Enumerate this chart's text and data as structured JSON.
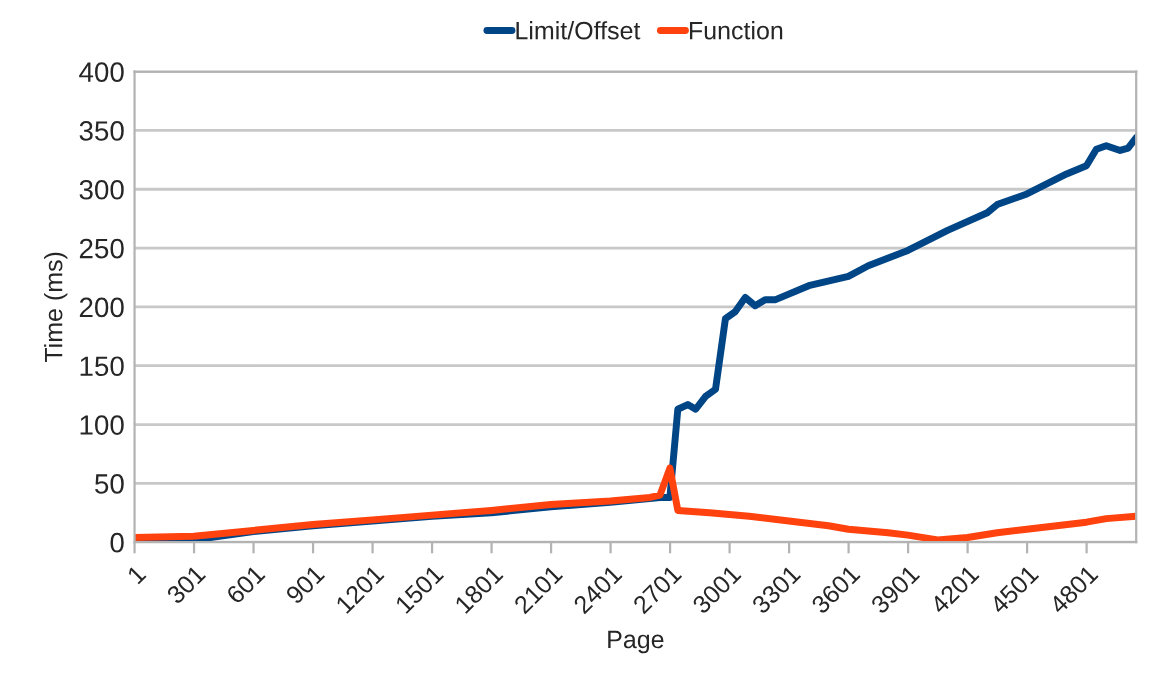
{
  "chart_data": {
    "type": "line",
    "xlabel": "Page",
    "ylabel": "Time (ms)",
    "xlim": [
      1,
      5051
    ],
    "ylim": [
      0,
      400
    ],
    "xticks": [
      1,
      301,
      601,
      901,
      1201,
      1501,
      1801,
      2101,
      2401,
      2701,
      3001,
      3301,
      3601,
      3901,
      4201,
      4501,
      4801
    ],
    "yticks": [
      0,
      50,
      100,
      150,
      200,
      250,
      300,
      350,
      400
    ],
    "grid": "y",
    "legend": "top",
    "marker": "none",
    "line_style": "solid",
    "series": [
      {
        "name": "Limit/Offset",
        "color": "#004586",
        "x": [
          1,
          300,
          600,
          900,
          1200,
          1500,
          1800,
          2100,
          2400,
          2650,
          2700,
          2740,
          2790,
          2830,
          2880,
          2930,
          2980,
          3030,
          3080,
          3130,
          3180,
          3230,
          3400,
          3600,
          3700,
          3900,
          4100,
          4300,
          4350,
          4500,
          4700,
          4800,
          4850,
          4900,
          4970,
          5010,
          5051
        ],
        "values": [
          0,
          2,
          9,
          14,
          18,
          22,
          25,
          30,
          34,
          38,
          38,
          113,
          117,
          113,
          124,
          130,
          190,
          196,
          208,
          201,
          206,
          206,
          218,
          226,
          235,
          248,
          265,
          280,
          287,
          296,
          313,
          320,
          334,
          337,
          333,
          335,
          344
        ]
      },
      {
        "name": "Function",
        "color": "#ff420e",
        "x": [
          1,
          300,
          600,
          900,
          1200,
          1500,
          1800,
          2100,
          2400,
          2600,
          2650,
          2700,
          2740,
          2900,
          3100,
          3300,
          3500,
          3600,
          3800,
          3900,
          4050,
          4200,
          4350,
          4500,
          4650,
          4800,
          4900,
          5051
        ],
        "values": [
          4,
          5,
          10,
          15,
          19,
          23,
          27,
          32,
          35,
          38,
          40,
          63,
          27,
          25,
          22,
          18,
          14,
          11,
          8,
          6,
          2,
          4,
          8,
          11,
          14,
          17,
          20,
          22
        ]
      }
    ]
  }
}
